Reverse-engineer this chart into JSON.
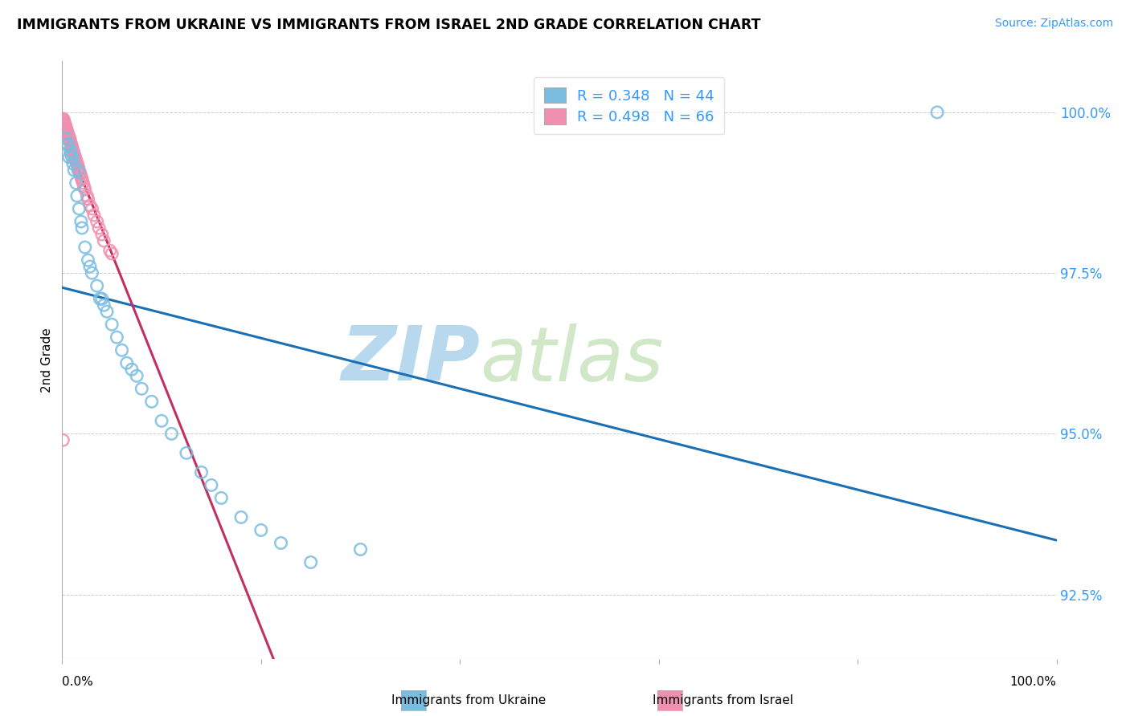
{
  "title": "IMMIGRANTS FROM UKRAINE VS IMMIGRANTS FROM ISRAEL 2ND GRADE CORRELATION CHART",
  "source": "Source: ZipAtlas.com",
  "ylabel": "2nd Grade",
  "legend_label1": "Immigrants from Ukraine",
  "legend_label2": "Immigrants from Israel",
  "R1": 0.348,
  "N1": 44,
  "R2": 0.498,
  "N2": 66,
  "color_ukraine": "#7bbde0",
  "color_israel": "#f090b0",
  "color_trendline_ukraine": "#1a6fb5",
  "color_trendline_israel": "#c03060",
  "ukraine_x": [
    0.3,
    0.5,
    0.7,
    0.8,
    0.9,
    1.0,
    1.2,
    1.4,
    1.5,
    1.7,
    2.0,
    2.3,
    2.6,
    3.0,
    3.5,
    4.0,
    4.5,
    5.0,
    5.5,
    6.0,
    7.0,
    8.0,
    9.0,
    10.0,
    11.0,
    12.5,
    14.0,
    16.0,
    18.0,
    20.0,
    22.0,
    25.0,
    2.8,
    3.8,
    6.5,
    7.5,
    0.6,
    1.1,
    1.9,
    4.2,
    88.0,
    15.0,
    30.0,
    1.6
  ],
  "ukraine_y": [
    99.6,
    99.5,
    99.3,
    99.4,
    99.35,
    99.3,
    99.1,
    98.9,
    98.7,
    98.5,
    98.2,
    97.9,
    97.7,
    97.5,
    97.3,
    97.1,
    96.9,
    96.7,
    96.5,
    96.3,
    96.0,
    95.7,
    95.5,
    95.2,
    95.0,
    94.7,
    94.4,
    94.0,
    93.7,
    93.5,
    93.3,
    93.0,
    97.6,
    97.1,
    96.1,
    95.9,
    99.5,
    99.2,
    98.3,
    97.0,
    100.0,
    94.2,
    93.2,
    99.1
  ],
  "israel_x": [
    0.1,
    0.15,
    0.2,
    0.25,
    0.3,
    0.35,
    0.4,
    0.45,
    0.5,
    0.55,
    0.6,
    0.65,
    0.7,
    0.75,
    0.8,
    0.85,
    0.9,
    1.0,
    1.1,
    1.2,
    1.3,
    1.4,
    1.5,
    1.6,
    1.8,
    2.0,
    2.2,
    2.5,
    3.0,
    3.5,
    4.0,
    5.0,
    0.22,
    0.38,
    0.52,
    0.68,
    0.82,
    0.96,
    1.05,
    1.15,
    1.25,
    1.35,
    1.45,
    1.55,
    1.65,
    1.75,
    1.85,
    1.95,
    2.1,
    2.3,
    2.6,
    2.8,
    3.2,
    3.7,
    4.2,
    4.8,
    0.28,
    0.42,
    0.58,
    0.72,
    0.18,
    0.32,
    0.62,
    0.78,
    0.95,
    0.08
  ],
  "israel_y": [
    99.9,
    99.88,
    99.85,
    99.82,
    99.8,
    99.78,
    99.75,
    99.73,
    99.7,
    99.68,
    99.65,
    99.62,
    99.6,
    99.57,
    99.55,
    99.52,
    99.5,
    99.45,
    99.4,
    99.35,
    99.3,
    99.25,
    99.2,
    99.15,
    99.05,
    98.95,
    98.85,
    98.7,
    98.5,
    98.3,
    98.1,
    97.8,
    99.83,
    99.76,
    99.69,
    99.63,
    99.54,
    99.48,
    99.42,
    99.38,
    99.33,
    99.28,
    99.23,
    99.18,
    99.13,
    99.08,
    99.03,
    98.98,
    98.9,
    98.8,
    98.65,
    98.55,
    98.4,
    98.2,
    98.0,
    97.85,
    99.81,
    99.74,
    99.66,
    99.6,
    99.87,
    99.79,
    99.64,
    99.58,
    99.46,
    94.9
  ],
  "watermark_zip": "ZIP",
  "watermark_atlas": "atlas",
  "watermark_color": "#cce5f5",
  "background_color": "#ffffff",
  "grid_color": "#cccccc",
  "xlim": [
    0,
    100
  ],
  "ylim": [
    91.5,
    100.8
  ],
  "y_ticks": [
    92.5,
    95.0,
    97.5,
    100.0
  ],
  "x_ticks": [
    0,
    20,
    40,
    60,
    80,
    100
  ]
}
